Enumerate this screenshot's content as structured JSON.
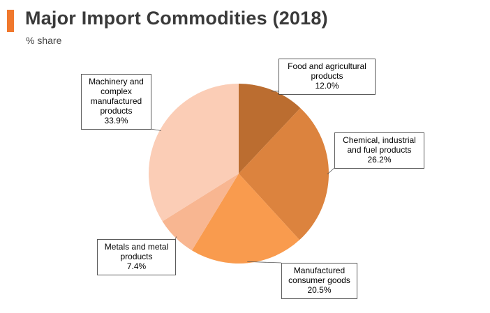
{
  "header": {
    "title": "Major Import Commodities (2018)",
    "subtitle": "% share",
    "accent_color": "#f0782d"
  },
  "chart_data": {
    "type": "pie",
    "title": "Major Import Commodities (2018)",
    "subtitle": "% share",
    "unit": "%",
    "start": "12 o'clock",
    "direction": "clockwise",
    "slices": [
      {
        "label_lines": [
          "Food and agricultural",
          "products"
        ],
        "value": 12.0,
        "value_label": "12.0%",
        "color": "#bb6d30"
      },
      {
        "label_lines": [
          "Chemical, industrial",
          "and fuel products"
        ],
        "value": 26.2,
        "value_label": "26.2%",
        "color": "#dc833e"
      },
      {
        "label_lines": [
          "Manufactured",
          "consumer goods"
        ],
        "value": 20.5,
        "value_label": "20.5%",
        "color": "#f99b4e"
      },
      {
        "label_lines": [
          "Metals and metal",
          "products"
        ],
        "value": 7.4,
        "value_label": "7.4%",
        "color": "#f8b691"
      },
      {
        "label_lines": [
          "Machinery and",
          "complex",
          "manufactured",
          "products"
        ],
        "value": 33.9,
        "value_label": "33.9%",
        "color": "#fbcdb6"
      }
    ]
  }
}
